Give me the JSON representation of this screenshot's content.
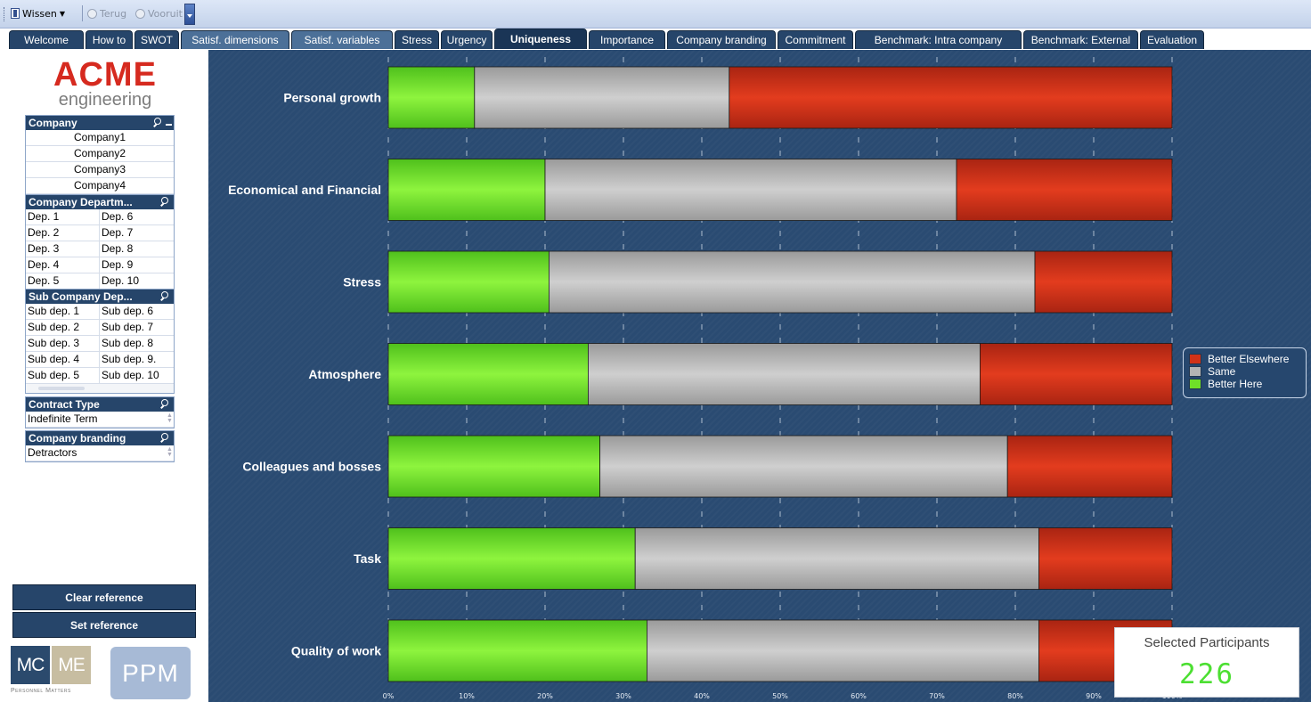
{
  "toolbar": {
    "clear_label": "Wissen",
    "back_label": "Terug",
    "forward_label": "Vooruit"
  },
  "tabs": [
    {
      "label": "Welcome",
      "state": "normal"
    },
    {
      "label": "How to",
      "state": "normal"
    },
    {
      "label": "SWOT",
      "state": "normal"
    },
    {
      "label": "Satisf. dimensions",
      "state": "light"
    },
    {
      "label": "Satisf. variables",
      "state": "light"
    },
    {
      "label": "Stress",
      "state": "normal"
    },
    {
      "label": "Urgency",
      "state": "normal"
    },
    {
      "label": "Uniqueness",
      "state": "active"
    },
    {
      "label": "Importance",
      "state": "normal"
    },
    {
      "label": "Company branding",
      "state": "normal"
    },
    {
      "label": "Commitment",
      "state": "normal"
    },
    {
      "label": "Benchmark: Intra company",
      "state": "normal"
    },
    {
      "label": "Benchmark: External",
      "state": "normal"
    },
    {
      "label": "Evaluation",
      "state": "normal"
    }
  ],
  "logo": {
    "line1": "ACME",
    "line2": "engineering"
  },
  "filters": {
    "company": {
      "title": "Company",
      "items": [
        "Company1",
        "Company2",
        "Company3",
        "Company4"
      ]
    },
    "department": {
      "title": "Company Departm...",
      "rows": [
        [
          "Dep. 1",
          "Dep. 6"
        ],
        [
          "Dep. 2",
          "Dep. 7"
        ],
        [
          "Dep. 3",
          "Dep. 8"
        ],
        [
          "Dep. 4",
          "Dep. 9"
        ],
        [
          "Dep. 5",
          "Dep. 10"
        ]
      ]
    },
    "subdepartment": {
      "title": "Sub Company Dep...",
      "rows": [
        [
          "Sub dep. 1",
          "Sub dep. 6"
        ],
        [
          "Sub dep. 2",
          "Sub dep. 7"
        ],
        [
          "Sub dep. 3",
          "Sub dep. 8"
        ],
        [
          "Sub dep. 4",
          "Sub dep. 9."
        ],
        [
          "Sub dep. 5",
          "Sub dep. 10"
        ]
      ]
    },
    "contract": {
      "title": "Contract Type",
      "value": "Indefinite Term"
    },
    "branding": {
      "title": "Company branding",
      "value": "Detractors"
    }
  },
  "buttons": {
    "clear_reference": "Clear reference",
    "set_reference": "Set reference"
  },
  "footer_logos": {
    "mc": "MC",
    "me": "ME",
    "sub": "Personnel Matters",
    "ppm": "PPM"
  },
  "selected": {
    "title": "Selected Participants",
    "value": "226"
  },
  "colors": {
    "better_here": "#6fe028",
    "same": "#b4b4b4",
    "better_elsewhere": "#d13218",
    "background": "#2a4b72"
  },
  "chart_data": {
    "type": "bar",
    "orientation": "horizontal",
    "stacked": true,
    "categories": [
      "Personal growth",
      "Economical and Financial",
      "Stress",
      "Atmosphere",
      "Colleagues and bosses",
      "Task",
      "Quality of work"
    ],
    "series": [
      {
        "name": "Better Here",
        "values": [
          11,
          20,
          20.5,
          25.5,
          27,
          31.5,
          33
        ]
      },
      {
        "name": "Same",
        "values": [
          32.5,
          52.5,
          62,
          50,
          52,
          51.5,
          50
        ]
      },
      {
        "name": "Better Elsewhere",
        "values": [
          56.5,
          27.5,
          17.5,
          24.5,
          21,
          17,
          17
        ]
      }
    ],
    "legend_order": [
      "Better Elsewhere",
      "Same",
      "Better Here"
    ],
    "legend_position": "right",
    "xlim": [
      0,
      100
    ],
    "x_ticks": [
      "0%",
      "10%",
      "20%",
      "30%",
      "40%",
      "50%",
      "60%",
      "70%",
      "80%",
      "90%",
      "100%"
    ],
    "grid": "vertical-dashed"
  }
}
